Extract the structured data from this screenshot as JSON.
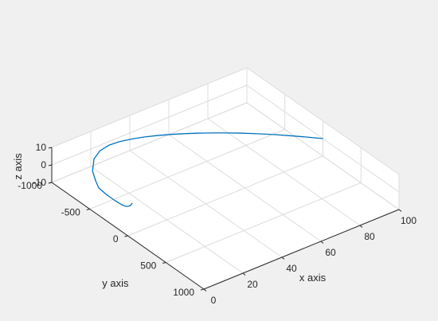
{
  "chart_data": {
    "type": "line",
    "projection": "3d",
    "xlabel": "x axis",
    "ylabel": "y axis",
    "zlabel": "z axis",
    "xlim": [
      0,
      100
    ],
    "ylim": [
      -1000,
      1000
    ],
    "zlim": [
      -10,
      10
    ],
    "grid": true,
    "x_ticks": [
      "0",
      "20",
      "40",
      "60",
      "80",
      "100"
    ],
    "y_ticks": [
      "-1000",
      "-500",
      "0",
      "500",
      "1000"
    ],
    "z_ticks": [
      "-10",
      "0",
      "10"
    ],
    "series": [
      {
        "color": "#0072bd",
        "points": [
          [
            100,
            0,
            0
          ],
          [
            95,
            -95,
            0.3
          ],
          [
            90,
            -185,
            0.6
          ],
          [
            85,
            -270,
            0.9
          ],
          [
            80,
            -350,
            1.2
          ],
          [
            75,
            -425,
            1.5
          ],
          [
            70,
            -495,
            1.8
          ],
          [
            65,
            -560,
            2.1
          ],
          [
            60,
            -620,
            2.4
          ],
          [
            55,
            -675,
            2.7
          ],
          [
            50,
            -725,
            3.0
          ],
          [
            45,
            -770,
            3.3
          ],
          [
            40,
            -810,
            3.5
          ],
          [
            35,
            -845,
            3.6
          ],
          [
            30,
            -875,
            3.5
          ],
          [
            25,
            -890,
            3.2
          ],
          [
            20,
            -880,
            2.6
          ],
          [
            15,
            -830,
            1.7
          ],
          [
            10,
            -720,
            0.5
          ],
          [
            7,
            -600,
            -0.3
          ],
          [
            5,
            -510,
            -0.5
          ],
          [
            4,
            -380,
            0.0
          ],
          [
            3,
            -250,
            1.2
          ],
          [
            2,
            -130,
            2.8
          ],
          [
            1,
            -40,
            5.0
          ],
          [
            0.5,
            20,
            7.5
          ],
          [
            0,
            60,
            10.5
          ]
        ]
      }
    ]
  }
}
